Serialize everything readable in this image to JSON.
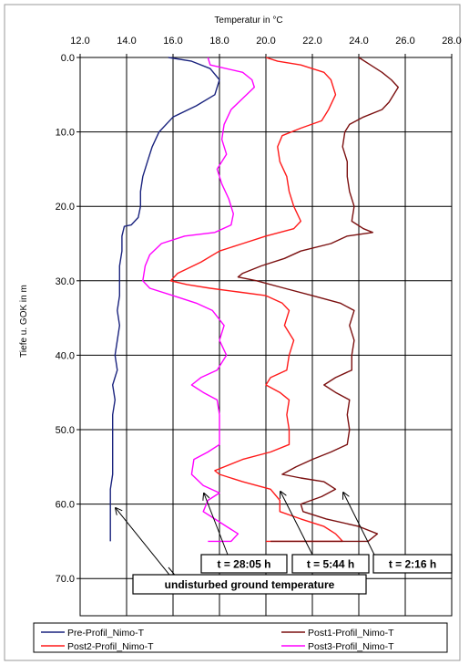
{
  "chart_data": {
    "type": "line",
    "title": "",
    "xlabel": "Temperatur in °C",
    "ylabel": "Tiefe u. GOK in m",
    "xlim": [
      12.0,
      28.0
    ],
    "ylim": [
      0.0,
      75.0
    ],
    "y_inverted": true,
    "x_axis_position": "top",
    "x_ticks": [
      "12.0",
      "14.0",
      "16.0",
      "18.0",
      "20.0",
      "22.0",
      "24.0",
      "26.0",
      "28.0"
    ],
    "y_ticks": [
      "0.0",
      "10.0",
      "20.0",
      "30.0",
      "40.0",
      "50.0",
      "60.0",
      "70.0"
    ],
    "grid": true,
    "legend_position": "bottom",
    "series": [
      {
        "name": "Pre-Profil_Nimo-T",
        "color": "#1a237e",
        "points": [
          [
            15.8,
            0
          ],
          [
            16.8,
            0.5
          ],
          [
            17.6,
            1.5
          ],
          [
            18.0,
            3
          ],
          [
            17.8,
            5
          ],
          [
            17.0,
            6.5
          ],
          [
            16.0,
            8
          ],
          [
            15.4,
            10
          ],
          [
            15.1,
            12
          ],
          [
            14.9,
            14
          ],
          [
            14.7,
            16
          ],
          [
            14.6,
            18
          ],
          [
            14.6,
            20
          ],
          [
            14.5,
            21.5
          ],
          [
            14.2,
            22.5
          ],
          [
            13.9,
            22.7
          ],
          [
            13.8,
            24
          ],
          [
            13.8,
            26
          ],
          [
            13.7,
            28
          ],
          [
            13.7,
            30
          ],
          [
            13.7,
            32
          ],
          [
            13.6,
            34
          ],
          [
            13.7,
            36
          ],
          [
            13.6,
            38
          ],
          [
            13.5,
            40
          ],
          [
            13.6,
            42
          ],
          [
            13.4,
            44
          ],
          [
            13.5,
            46
          ],
          [
            13.4,
            48
          ],
          [
            13.4,
            50
          ],
          [
            13.4,
            52
          ],
          [
            13.4,
            54
          ],
          [
            13.4,
            56
          ],
          [
            13.3,
            58
          ],
          [
            13.3,
            60
          ],
          [
            13.3,
            62
          ],
          [
            13.3,
            64
          ],
          [
            13.3,
            65
          ]
        ]
      },
      {
        "name": "Post3-Profil_Nimo-T",
        "color": "#ff00ff",
        "points": [
          [
            17.5,
            0
          ],
          [
            17.6,
            1
          ],
          [
            19.0,
            2
          ],
          [
            19.4,
            3
          ],
          [
            19.5,
            4
          ],
          [
            19.0,
            5.5
          ],
          [
            18.5,
            7
          ],
          [
            18.2,
            9
          ],
          [
            18.1,
            11
          ],
          [
            18.3,
            13
          ],
          [
            17.9,
            15
          ],
          [
            18.1,
            17
          ],
          [
            18.4,
            19
          ],
          [
            18.6,
            21
          ],
          [
            18.5,
            22.5
          ],
          [
            17.8,
            23.5
          ],
          [
            16.5,
            24
          ],
          [
            15.5,
            25
          ],
          [
            15.0,
            26.5
          ],
          [
            14.8,
            28
          ],
          [
            14.7,
            30
          ],
          [
            15.0,
            31
          ],
          [
            16.0,
            32
          ],
          [
            17.0,
            33
          ],
          [
            17.7,
            34
          ],
          [
            18.2,
            36
          ],
          [
            18.0,
            38
          ],
          [
            18.3,
            40
          ],
          [
            17.9,
            42
          ],
          [
            17.2,
            43
          ],
          [
            16.8,
            44
          ],
          [
            17.3,
            45
          ],
          [
            17.9,
            46
          ],
          [
            18.0,
            48
          ],
          [
            18.0,
            50
          ],
          [
            18.0,
            52
          ],
          [
            17.5,
            53
          ],
          [
            16.9,
            54
          ],
          [
            16.8,
            56
          ],
          [
            17.3,
            57.5
          ],
          [
            18.0,
            58.5
          ],
          [
            17.5,
            59.5
          ],
          [
            17.3,
            61
          ],
          [
            17.8,
            62
          ],
          [
            18.3,
            63
          ],
          [
            18.8,
            64
          ],
          [
            18.5,
            65
          ],
          [
            17.5,
            65
          ]
        ]
      },
      {
        "name": "Post2-Profil_Nimo-T",
        "color": "#ff1a1a",
        "points": [
          [
            20.0,
            0
          ],
          [
            20.5,
            0.5
          ],
          [
            21.5,
            1
          ],
          [
            22.5,
            2
          ],
          [
            22.8,
            3
          ],
          [
            23.0,
            5
          ],
          [
            22.7,
            7
          ],
          [
            22.4,
            8.5
          ],
          [
            21.5,
            9.5
          ],
          [
            20.7,
            10.5
          ],
          [
            20.5,
            12
          ],
          [
            20.6,
            14
          ],
          [
            20.9,
            16
          ],
          [
            21.0,
            18
          ],
          [
            21.2,
            20
          ],
          [
            21.5,
            22
          ],
          [
            21.2,
            23
          ],
          [
            20.0,
            24
          ],
          [
            19.0,
            25
          ],
          [
            18.0,
            26
          ],
          [
            17.2,
            27.5
          ],
          [
            16.2,
            29
          ],
          [
            15.9,
            30
          ],
          [
            16.6,
            30.5
          ],
          [
            17.6,
            31
          ],
          [
            18.8,
            31.5
          ],
          [
            20.0,
            32
          ],
          [
            20.7,
            33
          ],
          [
            21.0,
            34
          ],
          [
            20.8,
            36
          ],
          [
            21.2,
            38
          ],
          [
            21.0,
            40
          ],
          [
            20.9,
            42
          ],
          [
            20.2,
            43
          ],
          [
            20.0,
            44
          ],
          [
            20.6,
            45
          ],
          [
            21.0,
            46
          ],
          [
            20.9,
            48
          ],
          [
            21.0,
            50
          ],
          [
            21.0,
            52
          ],
          [
            20.2,
            53
          ],
          [
            19.0,
            54
          ],
          [
            17.8,
            55.5
          ],
          [
            18.0,
            56
          ],
          [
            19.0,
            57
          ],
          [
            20.2,
            58
          ],
          [
            20.6,
            59.5
          ],
          [
            20.6,
            61
          ],
          [
            21.5,
            62
          ],
          [
            22.5,
            63
          ],
          [
            23.0,
            64
          ],
          [
            23.3,
            65
          ],
          [
            20.0,
            65
          ]
        ]
      },
      {
        "name": "Post1-Profil_Nimo-T",
        "color": "#7b1010",
        "points": [
          [
            24.0,
            0
          ],
          [
            24.5,
            1
          ],
          [
            25.0,
            2
          ],
          [
            25.4,
            3
          ],
          [
            25.7,
            4
          ],
          [
            25.3,
            6
          ],
          [
            25.0,
            7
          ],
          [
            24.2,
            8
          ],
          [
            23.6,
            9
          ],
          [
            23.4,
            10
          ],
          [
            23.3,
            12
          ],
          [
            23.5,
            14
          ],
          [
            23.5,
            16
          ],
          [
            23.6,
            18
          ],
          [
            23.8,
            20
          ],
          [
            23.7,
            22
          ],
          [
            24.2,
            23
          ],
          [
            24.6,
            23.5
          ],
          [
            23.5,
            24
          ],
          [
            22.8,
            25
          ],
          [
            21.5,
            26
          ],
          [
            20.8,
            27
          ],
          [
            19.8,
            28
          ],
          [
            19.0,
            29
          ],
          [
            18.8,
            29.5
          ],
          [
            19.6,
            30
          ],
          [
            20.8,
            31
          ],
          [
            22.0,
            32
          ],
          [
            23.2,
            33
          ],
          [
            23.8,
            34
          ],
          [
            23.6,
            36
          ],
          [
            23.8,
            38
          ],
          [
            23.7,
            40
          ],
          [
            23.7,
            42
          ],
          [
            23.0,
            43
          ],
          [
            22.5,
            44
          ],
          [
            23.0,
            45
          ],
          [
            23.6,
            46
          ],
          [
            23.5,
            48
          ],
          [
            23.6,
            50
          ],
          [
            23.5,
            52
          ],
          [
            22.8,
            53
          ],
          [
            22.0,
            54
          ],
          [
            21.3,
            55
          ],
          [
            20.7,
            56
          ],
          [
            21.5,
            56.5
          ],
          [
            22.5,
            57
          ],
          [
            23.0,
            58
          ],
          [
            22.4,
            59
          ],
          [
            21.5,
            60
          ],
          [
            21.6,
            61
          ],
          [
            22.6,
            62
          ],
          [
            24.0,
            63
          ],
          [
            24.8,
            64
          ],
          [
            24.4,
            65
          ],
          [
            20.2,
            65
          ]
        ]
      }
    ],
    "annotations": [
      {
        "text": "t = 28:05 h"
      },
      {
        "text": "t = 5:44 h"
      },
      {
        "text": "t = 2:16 h"
      },
      {
        "text": "undisturbed ground temperature"
      }
    ],
    "legend": [
      {
        "label": "Pre-Profil_Nimo-T",
        "color": "#1a237e"
      },
      {
        "label": "Post1-Profil_Nimo-T",
        "color": "#7b1010"
      },
      {
        "label": "Post2-Profil_Nimo-T",
        "color": "#ff1a1a"
      },
      {
        "label": "Post3-Profil_Nimo-T",
        "color": "#ff00ff"
      }
    ]
  }
}
